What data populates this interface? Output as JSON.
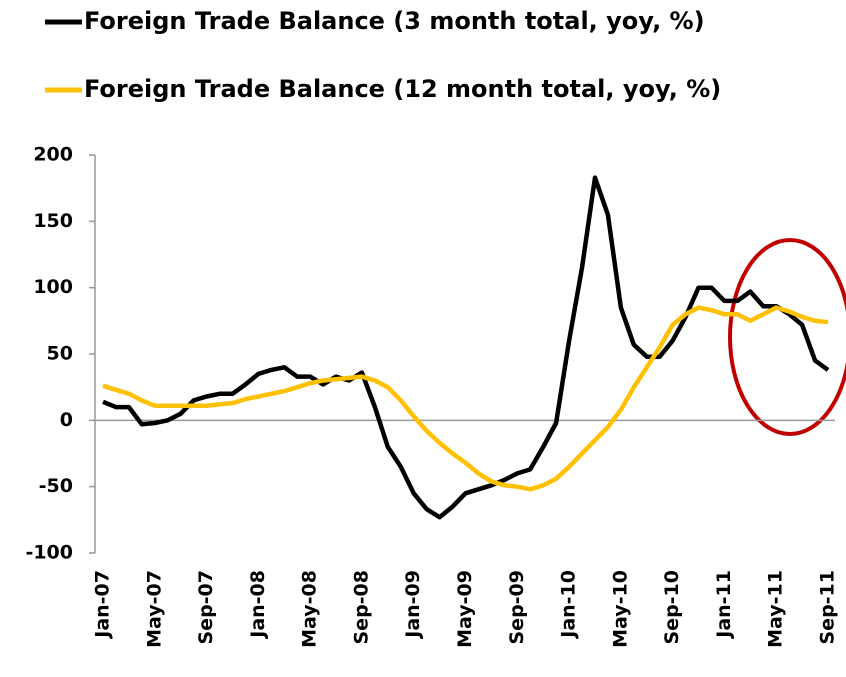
{
  "chart_data": {
    "type": "line",
    "categories": [
      "Jan-07",
      null,
      null,
      null,
      "May-07",
      null,
      null,
      null,
      "Sep-07",
      null,
      null,
      null,
      "Jan-08",
      null,
      null,
      null,
      "May-08",
      null,
      null,
      null,
      "Sep-08",
      null,
      null,
      null,
      "Jan-09",
      null,
      null,
      null,
      "May-09",
      null,
      null,
      null,
      "Sep-09",
      null,
      null,
      null,
      "Jan-10",
      null,
      null,
      null,
      "May-10",
      null,
      null,
      null,
      "Sep-10",
      null,
      null,
      null,
      "Jan-11",
      null,
      null,
      null,
      "May-11",
      null,
      null,
      null,
      "Sep-11"
    ],
    "series": [
      {
        "name": "Foreign Trade Balance (3 month total, yoy, %)",
        "color": "#000000",
        "values": [
          14,
          10,
          10,
          -3,
          -2,
          0,
          5,
          15,
          18,
          20,
          20,
          27,
          35,
          38,
          40,
          33,
          33,
          27,
          33,
          30,
          36,
          10,
          -20,
          -35,
          -55,
          -67,
          -73,
          -65,
          -55,
          -52,
          -49,
          -45,
          -40,
          -37,
          -20,
          -2,
          60,
          115,
          183,
          155,
          85,
          57,
          48,
          48,
          60,
          78,
          100,
          100,
          90,
          90,
          97,
          86,
          86,
          80,
          72,
          45,
          38
        ]
      },
      {
        "name": "Foreign Trade Balance (12 month total, yoy, %)",
        "color": "#ffc000",
        "values": [
          26,
          23,
          20,
          15,
          11,
          11,
          11,
          11,
          11,
          12,
          13,
          16,
          18,
          20,
          22,
          25,
          28,
          30,
          31,
          32,
          33,
          30,
          25,
          15,
          3,
          -8,
          -17,
          -25,
          -32,
          -40,
          -46,
          -49,
          -50,
          -52,
          -49,
          -44,
          -35,
          -25,
          -15,
          -5,
          8,
          25,
          40,
          55,
          72,
          80,
          85,
          83,
          80,
          80,
          75,
          80,
          85,
          82,
          78,
          75,
          74
        ]
      }
    ],
    "ylim": [
      -100,
      200
    ],
    "yticks": [
      -100,
      -50,
      0,
      50,
      100,
      150,
      200
    ],
    "grid": false
  }
}
